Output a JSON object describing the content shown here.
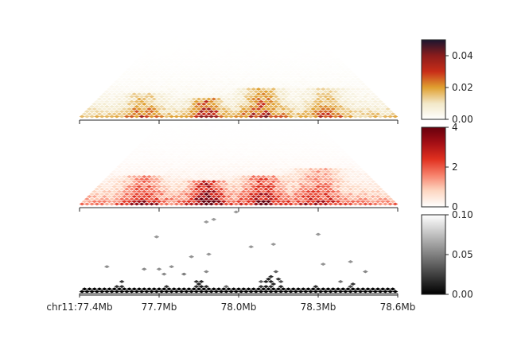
{
  "chart_data": [
    {
      "type": "heatmap",
      "name": "",
      "region": {
        "chrom": "chr11",
        "start_mb": 77.4,
        "end_mb": 78.6
      },
      "colormap": [
        "#ffffff",
        "#f2e8c8",
        "#e0a030",
        "#c82d18",
        "#8b1c1c",
        "#1a1530"
      ],
      "colorbar": {
        "ticks": [
          "0.00",
          "0.02",
          "0.04"
        ],
        "range": [
          0,
          0.05
        ]
      },
      "hotspots": [
        {
          "pos_mb": 77.88,
          "half_span_mb": 0.03,
          "strength": 0.9
        },
        {
          "pos_mb": 78.09,
          "half_span_mb": 0.05,
          "strength": 0.75
        },
        {
          "pos_mb": 77.64,
          "half_span_mb": 0.04,
          "strength": 0.5
        },
        {
          "pos_mb": 78.33,
          "half_span_mb": 0.05,
          "strength": 0.45
        }
      ]
    },
    {
      "type": "heatmap",
      "name": "",
      "region": {
        "chrom": "chr11",
        "start_mb": 77.4,
        "end_mb": 78.6
      },
      "colormap": [
        "#ffffff",
        "#fdd7c2",
        "#f7816b",
        "#e0301f",
        "#a50f15",
        "#67000d"
      ],
      "colorbar": {
        "ticks": [
          "0",
          "2",
          "4"
        ],
        "range": [
          0,
          4
        ]
      },
      "hotspots": [
        {
          "pos_mb": 77.88,
          "half_span_mb": 0.04,
          "strength": 0.95
        },
        {
          "pos_mb": 78.09,
          "half_span_mb": 0.05,
          "strength": 0.7
        },
        {
          "pos_mb": 77.64,
          "half_span_mb": 0.05,
          "strength": 0.55
        },
        {
          "pos_mb": 78.3,
          "half_span_mb": 0.06,
          "strength": 0.5
        }
      ]
    },
    {
      "type": "heatmap",
      "name": "",
      "region": {
        "chrom": "chr11",
        "start_mb": 77.4,
        "end_mb": 78.6
      },
      "colormap": [
        "#000000",
        "#808080",
        "#ffffff"
      ],
      "colorbar": {
        "ticks": [
          "0.10",
          "0.05",
          "0.00"
        ],
        "range": [
          0,
          0.1
        ]
      },
      "hotspots": [
        {
          "pos_mb": 77.56,
          "half_span_mb": 0.02,
          "strength": 0.6
        },
        {
          "pos_mb": 77.72,
          "half_span_mb": 0.02,
          "strength": 0.5
        },
        {
          "pos_mb": 77.86,
          "half_span_mb": 0.03,
          "strength": 0.7
        },
        {
          "pos_mb": 78.12,
          "half_span_mb": 0.04,
          "strength": 0.85
        },
        {
          "pos_mb": 78.3,
          "half_span_mb": 0.02,
          "strength": 0.5
        },
        {
          "pos_mb": 78.43,
          "half_span_mb": 0.02,
          "strength": 0.5
        }
      ]
    }
  ],
  "xaxis": {
    "ticks_mb": [
      77.4,
      77.7,
      78.0,
      78.3,
      78.6
    ],
    "tick_labels": [
      "chr11:77.4Mb",
      "77.7Mb",
      "78.0Mb",
      "78.3Mb",
      "78.6Mb"
    ]
  }
}
